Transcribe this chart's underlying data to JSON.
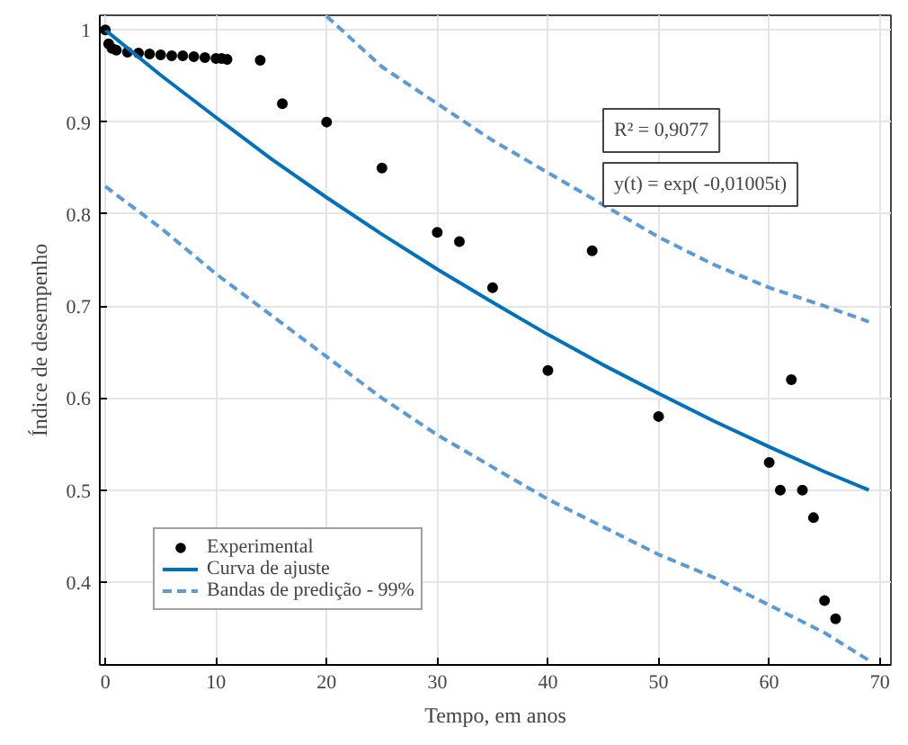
{
  "chart_data": {
    "type": "scatter",
    "xlabel": "Tempo, em anos",
    "ylabel": "Índice de desempenho",
    "xlim": [
      -0.5,
      71
    ],
    "ylim": [
      0.31,
      1.016
    ],
    "xticks": [
      0,
      10,
      20,
      30,
      40,
      50,
      60,
      70
    ],
    "yticks": [
      0.4,
      0.5,
      0.6,
      0.7,
      0.8,
      0.9,
      1
    ],
    "grid": true,
    "legend": "bottom left",
    "annotations": [
      "R² = 0,9077",
      "y(t) = exp( -0,01005t)"
    ],
    "series": [
      {
        "name": "Experimental",
        "marker": "circle",
        "color": "#000000",
        "x": [
          0,
          0.3,
          0.6,
          1,
          2,
          3,
          4,
          5,
          6,
          7,
          8,
          9,
          10,
          10.5,
          11,
          14,
          16,
          20,
          25,
          30,
          32,
          35,
          40,
          44,
          50,
          60,
          61,
          62,
          63,
          64,
          65,
          66
        ],
        "values": [
          1.0,
          0.985,
          0.98,
          0.978,
          0.976,
          0.975,
          0.974,
          0.973,
          0.972,
          0.972,
          0.971,
          0.97,
          0.969,
          0.969,
          0.968,
          0.967,
          0.92,
          0.9,
          0.85,
          0.78,
          0.77,
          0.72,
          0.63,
          0.76,
          0.58,
          0.53,
          0.5,
          0.62,
          0.5,
          0.47,
          0.38,
          0.36
        ]
      },
      {
        "name": "Curva de ajuste",
        "type": "line",
        "line_style": "solid",
        "color": "#0072bd",
        "x": [
          0,
          5,
          10,
          15,
          20,
          25,
          30,
          35,
          40,
          45,
          50,
          55,
          60,
          65,
          69
        ],
        "values": [
          1.0,
          0.951,
          0.905,
          0.86,
          0.818,
          0.778,
          0.74,
          0.704,
          0.669,
          0.636,
          0.605,
          0.575,
          0.547,
          0.52,
          0.5
        ]
      },
      {
        "name": "Bandas de predição - 99%",
        "type": "line",
        "line_style": "dashed",
        "color": "#5b9bd5",
        "x": [
          0,
          5,
          10,
          15,
          20,
          25,
          30,
          35,
          40,
          45,
          50,
          55,
          60,
          65,
          69
        ],
        "values": [
          0.83,
          0.785,
          0.735,
          0.69,
          0.645,
          0.6,
          0.56,
          0.525,
          0.49,
          0.46,
          0.43,
          0.405,
          0.375,
          0.345,
          0.315
        ]
      },
      {
        "type": "line",
        "line_style": "dashed",
        "color": "#5b9bd5",
        "x": [
          20,
          25,
          30,
          35,
          40,
          45,
          50,
          55,
          60,
          65,
          69
        ],
        "values": [
          1.015,
          0.96,
          0.92,
          0.88,
          0.845,
          0.81,
          0.775,
          0.745,
          0.72,
          0.7,
          0.683
        ]
      }
    ]
  }
}
